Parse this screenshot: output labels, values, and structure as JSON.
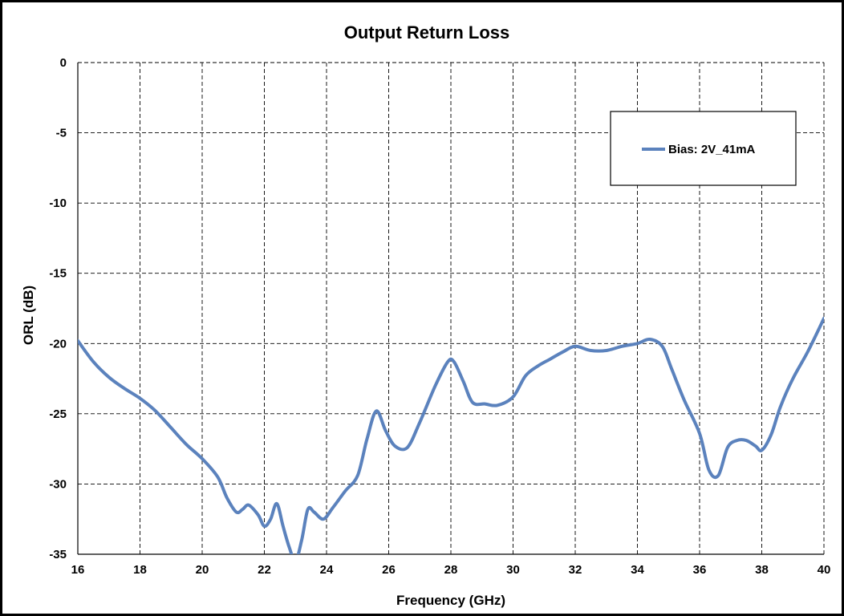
{
  "chart_data": {
    "type": "line",
    "title": "Output Return Loss",
    "xlabel": "Frequency (GHz)",
    "ylabel": "ORL (dB)",
    "xlim": [
      16,
      40
    ],
    "ylim": [
      -35,
      0
    ],
    "x_ticks": [
      16,
      18,
      20,
      22,
      24,
      26,
      28,
      30,
      32,
      34,
      36,
      38,
      40
    ],
    "y_ticks": [
      0,
      -5,
      -10,
      -15,
      -20,
      -25,
      -30,
      -35
    ],
    "grid": true,
    "legend_position": "top-right",
    "series": [
      {
        "name": "Bias: 2V_41mA",
        "color": "#5B82BD",
        "x": [
          16,
          16.5,
          17,
          17.5,
          18,
          18.5,
          19,
          19.5,
          20,
          20.5,
          20.8,
          21.1,
          21.3,
          21.5,
          21.8,
          22,
          22.2,
          22.4,
          22.6,
          22.8,
          23,
          23.2,
          23.4,
          23.6,
          23.9,
          24.2,
          24.6,
          25,
          25.3,
          25.6,
          25.9,
          26.2,
          26.6,
          27,
          27.5,
          27.9,
          28.1,
          28.4,
          28.7,
          29.1,
          29.5,
          30,
          30.4,
          30.8,
          31.2,
          31.6,
          32,
          32.5,
          33,
          33.5,
          34,
          34.4,
          34.8,
          35.1,
          35.5,
          36,
          36.3,
          36.6,
          36.9,
          37.2,
          37.5,
          37.8,
          38,
          38.3,
          38.6,
          39,
          39.5,
          40
        ],
        "y": [
          -19.8,
          -21.3,
          -22.4,
          -23.2,
          -23.9,
          -24.8,
          -26,
          -27.2,
          -28.2,
          -29.5,
          -31,
          -32,
          -31.8,
          -31.5,
          -32.2,
          -33,
          -32.5,
          -31.4,
          -33,
          -34.5,
          -35.5,
          -34,
          -31.8,
          -32,
          -32.5,
          -31.7,
          -30.5,
          -29.4,
          -26.8,
          -24.8,
          -26.2,
          -27.3,
          -27.4,
          -25.6,
          -23,
          -21.3,
          -21.3,
          -22.7,
          -24.2,
          -24.3,
          -24.4,
          -23.8,
          -22.3,
          -21.6,
          -21.1,
          -20.6,
          -20.2,
          -20.5,
          -20.5,
          -20.2,
          -20,
          -19.7,
          -20.2,
          -21.8,
          -24,
          -26.4,
          -29,
          -29.4,
          -27.4,
          -26.9,
          -26.9,
          -27.3,
          -27.6,
          -26.5,
          -24.5,
          -22.5,
          -20.5,
          -18.2
        ]
      }
    ]
  }
}
